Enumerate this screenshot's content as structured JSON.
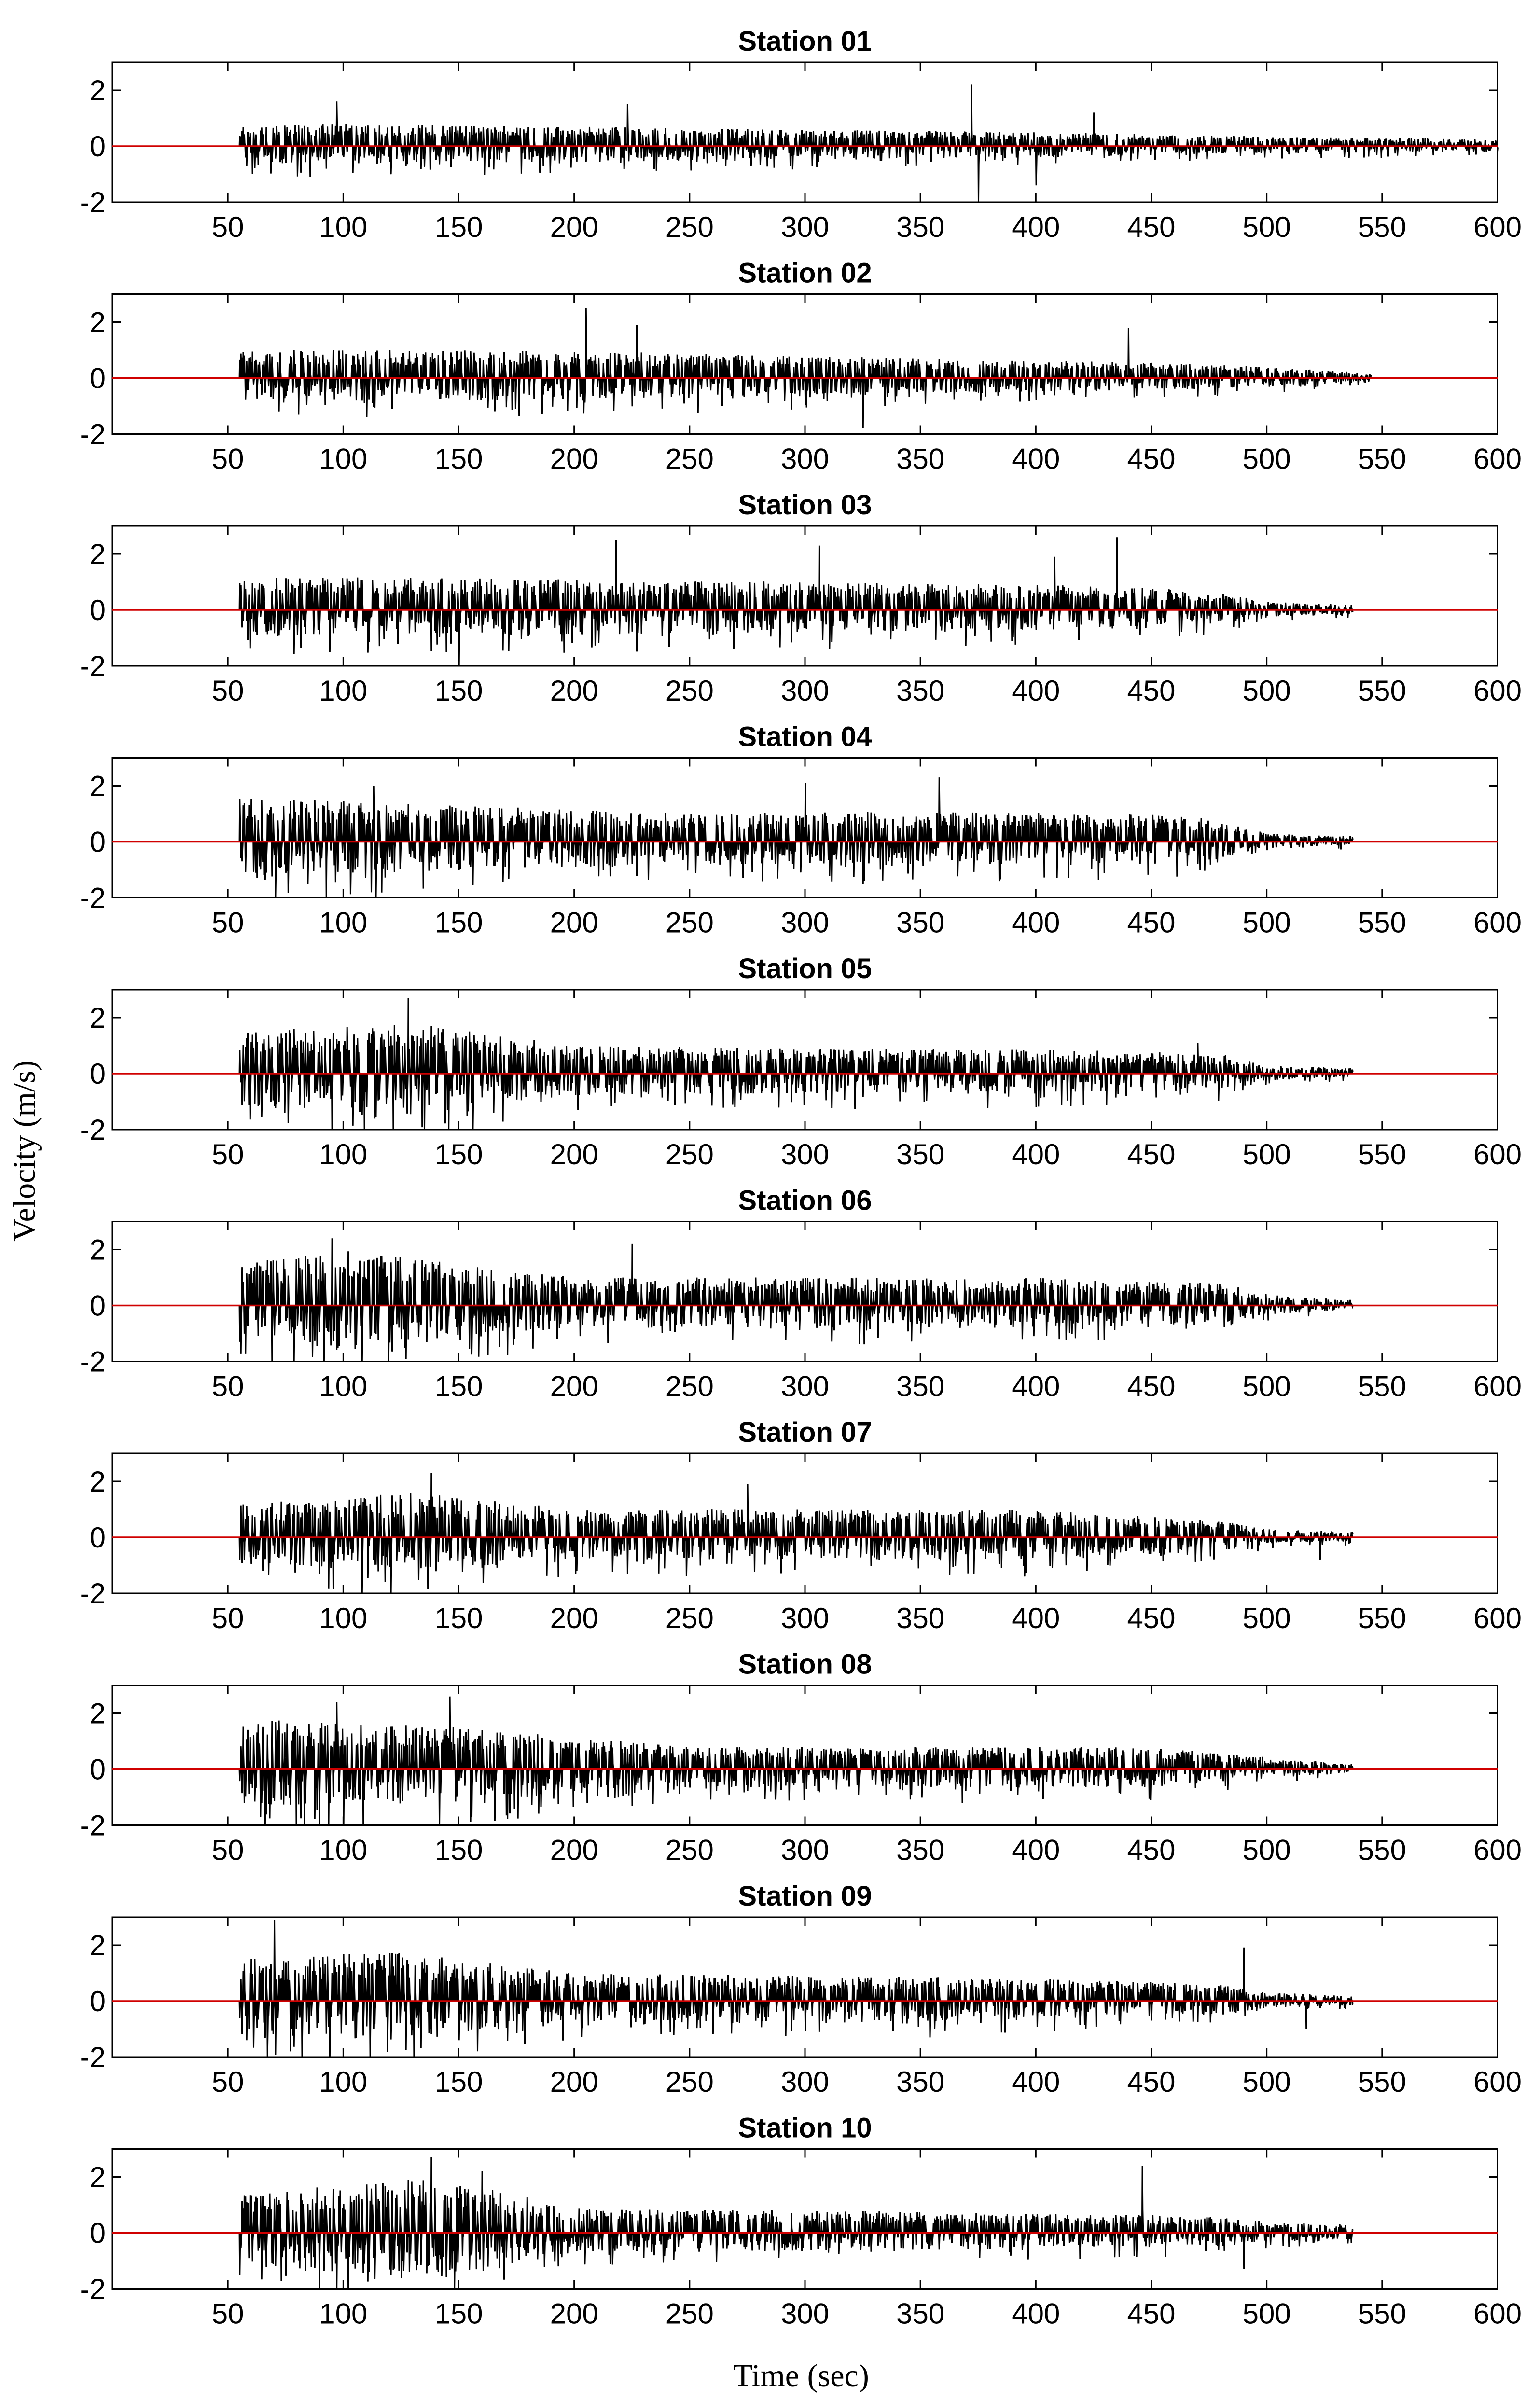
{
  "chart_data": {
    "type": "line",
    "layout": "small-multiples",
    "xlabel": "Time (sec)",
    "ylabel": "Velocity (m/s)",
    "xlim": [
      0,
      600
    ],
    "ylim": [
      -2,
      3
    ],
    "xticks": [
      50,
      100,
      150,
      200,
      250,
      300,
      350,
      400,
      450,
      500,
      550,
      600
    ],
    "yticks": [
      -2,
      0,
      2
    ],
    "grid": false,
    "reference_line": {
      "y": 0,
      "color": "#d00000"
    },
    "trace_color": "#000000",
    "panels": [
      {
        "title": "Station 01",
        "t_start": 55,
        "t_end": 600,
        "envelope": [
          [
            55,
            0.75
          ],
          [
            100,
            0.8
          ],
          [
            200,
            0.7
          ],
          [
            300,
            0.6
          ],
          [
            400,
            0.5
          ],
          [
            500,
            0.35
          ],
          [
            600,
            0.25
          ]
        ],
        "peaks": [
          [
            97,
            1.6
          ],
          [
            223,
            1.5
          ],
          [
            372,
            2.2
          ],
          [
            375,
            -2.0
          ],
          [
            425,
            1.2
          ],
          [
            400,
            -1.4
          ]
        ]
      },
      {
        "title": "Station 02",
        "t_start": 55,
        "t_end": 545,
        "envelope": [
          [
            55,
            1.0
          ],
          [
            150,
            1.0
          ],
          [
            250,
            0.9
          ],
          [
            350,
            0.7
          ],
          [
            450,
            0.55
          ],
          [
            500,
            0.4
          ],
          [
            545,
            0.2
          ]
        ],
        "peaks": [
          [
            205,
            2.5
          ],
          [
            227,
            1.9
          ],
          [
            325,
            -1.8
          ],
          [
            440,
            1.8
          ],
          [
            110,
            -1.4
          ]
        ]
      },
      {
        "title": "Station 03",
        "t_start": 55,
        "t_end": 537,
        "envelope": [
          [
            55,
            1.2
          ],
          [
            200,
            1.1
          ],
          [
            300,
            1.0
          ],
          [
            400,
            0.9
          ],
          [
            450,
            0.8
          ],
          [
            480,
            0.6
          ],
          [
            500,
            0.3
          ],
          [
            537,
            0.2
          ]
        ],
        "peaks": [
          [
            218,
            2.5
          ],
          [
            306,
            2.3
          ],
          [
            408,
            1.9
          ],
          [
            435,
            2.6
          ],
          [
            150,
            -2.0
          ]
        ]
      },
      {
        "title": "Station 04",
        "t_start": 55,
        "t_end": 537,
        "envelope": [
          [
            55,
            1.6
          ],
          [
            150,
            1.3
          ],
          [
            250,
            1.0
          ],
          [
            350,
            1.1
          ],
          [
            450,
            1.0
          ],
          [
            480,
            0.8
          ],
          [
            500,
            0.3
          ],
          [
            537,
            0.2
          ]
        ],
        "peaks": [
          [
            113,
            2.0
          ],
          [
            114,
            -2.0
          ],
          [
            325,
            -1.5
          ],
          [
            358,
            2.3
          ],
          [
            300,
            2.1
          ]
        ]
      },
      {
        "title": "Station 05",
        "t_start": 55,
        "t_end": 537,
        "envelope": [
          [
            55,
            1.5
          ],
          [
            130,
            1.8
          ],
          [
            200,
            1.0
          ],
          [
            300,
            0.9
          ],
          [
            400,
            0.9
          ],
          [
            480,
            0.7
          ],
          [
            500,
            0.3
          ],
          [
            537,
            0.2
          ]
        ],
        "peaks": [
          [
            128,
            2.7
          ],
          [
            110,
            -1.2
          ],
          [
            165,
            -1.4
          ],
          [
            400,
            -1.2
          ],
          [
            470,
            1.1
          ]
        ]
      },
      {
        "title": "Station 06",
        "t_start": 55,
        "t_end": 537,
        "envelope": [
          [
            55,
            1.5
          ],
          [
            100,
            2.0
          ],
          [
            200,
            1.0
          ],
          [
            300,
            1.0
          ],
          [
            400,
            1.0
          ],
          [
            480,
            0.8
          ],
          [
            500,
            0.4
          ],
          [
            537,
            0.2
          ]
        ],
        "peaks": [
          [
            95,
            2.4
          ],
          [
            225,
            2.2
          ],
          [
            125,
            -1.2
          ],
          [
            350,
            -1.0
          ],
          [
            410,
            -1.2
          ]
        ]
      },
      {
        "title": "Station 07",
        "t_start": 55,
        "t_end": 537,
        "envelope": [
          [
            55,
            1.2
          ],
          [
            130,
            1.6
          ],
          [
            200,
            1.0
          ],
          [
            300,
            1.0
          ],
          [
            400,
            1.0
          ],
          [
            480,
            0.6
          ],
          [
            500,
            0.3
          ],
          [
            537,
            0.2
          ]
        ],
        "peaks": [
          [
            138,
            2.3
          ],
          [
            275,
            1.9
          ],
          [
            65,
            -1.2
          ],
          [
            395,
            -1.4
          ],
          [
            523,
            -0.8
          ]
        ]
      },
      {
        "title": "Station 08",
        "t_start": 55,
        "t_end": 537,
        "envelope": [
          [
            55,
            1.8
          ],
          [
            150,
            1.5
          ],
          [
            250,
            0.8
          ],
          [
            350,
            0.8
          ],
          [
            450,
            0.8
          ],
          [
            490,
            0.5
          ],
          [
            520,
            0.3
          ],
          [
            537,
            0.2
          ]
        ],
        "peaks": [
          [
            97,
            2.4
          ],
          [
            146,
            2.6
          ],
          [
            100,
            -2.0
          ],
          [
            64,
            -1.7
          ],
          [
            368,
            -1.2
          ]
        ]
      },
      {
        "title": "Station 09",
        "t_start": 55,
        "t_end": 537,
        "envelope": [
          [
            55,
            1.5
          ],
          [
            120,
            1.8
          ],
          [
            200,
            1.0
          ],
          [
            300,
            0.9
          ],
          [
            400,
            0.8
          ],
          [
            480,
            0.6
          ],
          [
            500,
            0.3
          ],
          [
            537,
            0.2
          ]
        ],
        "peaks": [
          [
            70,
            2.9
          ],
          [
            58,
            -1.4
          ],
          [
            150,
            -1.4
          ],
          [
            354,
            -1.3
          ],
          [
            490,
            1.9
          ],
          [
            517,
            -1.0
          ]
        ]
      },
      {
        "title": "Station 10",
        "t_start": 55,
        "t_end": 537,
        "envelope": [
          [
            55,
            1.5
          ],
          [
            140,
            2.0
          ],
          [
            200,
            0.9
          ],
          [
            300,
            0.8
          ],
          [
            400,
            0.7
          ],
          [
            480,
            0.6
          ],
          [
            500,
            0.4
          ],
          [
            537,
            0.3
          ]
        ],
        "peaks": [
          [
            138,
            2.7
          ],
          [
            160,
            2.2
          ],
          [
            97,
            -2.0
          ],
          [
            125,
            -1.6
          ],
          [
            446,
            2.4
          ],
          [
            490,
            -1.3
          ],
          [
            193,
            -1.2
          ]
        ]
      }
    ]
  }
}
